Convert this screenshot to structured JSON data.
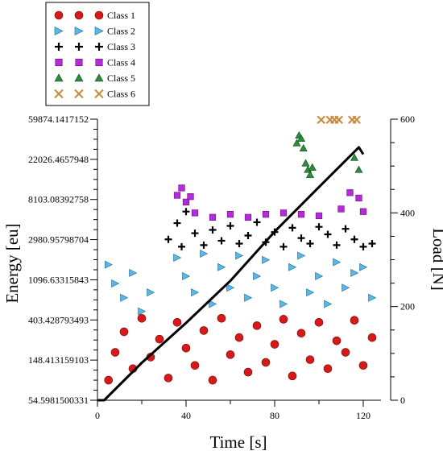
{
  "chart_data": {
    "type": "scatter",
    "xlabel": "Time [s]",
    "ylabel_left": "Energy [eu]",
    "ylabel_right": "Load [N]",
    "x_range": [
      0,
      128
    ],
    "x_ticks": [
      0,
      40,
      80,
      120
    ],
    "x_tick_labels": [
      "0",
      "40",
      "80",
      "120"
    ],
    "y_left_scale": "log",
    "y_left_range": [
      54.5981500331,
      59874.1417152
    ],
    "y_left_ticks": [
      54.5981500331,
      148.413159103,
      403.428793493,
      1096.63315843,
      2980.95798704,
      8103.08392758,
      22026.4657948,
      59874.1417152
    ],
    "y_left_tick_labels": [
      "54.5981500331",
      "148.413159103",
      "403.428793493",
      "1096.63315843",
      "2980.95798704",
      "8103.08392758",
      "22026.4657948",
      "59874.1417152"
    ],
    "y_right_range": [
      0,
      600
    ],
    "y_right_ticks": [
      0,
      200,
      400,
      600
    ],
    "y_right_tick_labels": [
      "0",
      "200",
      "400",
      "600"
    ],
    "legend_position": "top-left, outside",
    "series": [
      {
        "name": "Class 1",
        "marker": "circle",
        "color": "#d41a1a",
        "edge": "#7a0000",
        "points": [
          [
            5,
            90
          ],
          [
            8,
            180
          ],
          [
            12,
            300
          ],
          [
            16,
            120
          ],
          [
            20,
            420
          ],
          [
            24,
            160
          ],
          [
            28,
            250
          ],
          [
            32,
            95
          ],
          [
            36,
            380
          ],
          [
            40,
            200
          ],
          [
            44,
            130
          ],
          [
            48,
            310
          ],
          [
            52,
            90
          ],
          [
            56,
            420
          ],
          [
            60,
            170
          ],
          [
            64,
            260
          ],
          [
            68,
            110
          ],
          [
            72,
            350
          ],
          [
            76,
            140
          ],
          [
            80,
            220
          ],
          [
            84,
            410
          ],
          [
            88,
            100
          ],
          [
            92,
            290
          ],
          [
            96,
            150
          ],
          [
            100,
            380
          ],
          [
            104,
            120
          ],
          [
            108,
            240
          ],
          [
            112,
            180
          ],
          [
            116,
            400
          ],
          [
            120,
            130
          ],
          [
            124,
            260
          ]
        ]
      },
      {
        "name": "Class 2",
        "marker": "triangle-right",
        "color": "#5bb8e6",
        "edge": "#1f6a96",
        "points": [
          [
            5,
            1600
          ],
          [
            8,
            1000
          ],
          [
            12,
            700
          ],
          [
            16,
            1300
          ],
          [
            20,
            500
          ],
          [
            24,
            800
          ],
          [
            36,
            1900
          ],
          [
            40,
            1200
          ],
          [
            44,
            800
          ],
          [
            48,
            2100
          ],
          [
            52,
            600
          ],
          [
            56,
            1500
          ],
          [
            60,
            900
          ],
          [
            64,
            2000
          ],
          [
            68,
            700
          ],
          [
            72,
            1200
          ],
          [
            76,
            1800
          ],
          [
            80,
            900
          ],
          [
            84,
            600
          ],
          [
            88,
            1500
          ],
          [
            92,
            2000
          ],
          [
            96,
            800
          ],
          [
            100,
            1200
          ],
          [
            104,
            600
          ],
          [
            108,
            1700
          ],
          [
            112,
            900
          ],
          [
            116,
            1300
          ],
          [
            120,
            1500
          ],
          [
            124,
            700
          ]
        ]
      },
      {
        "name": "Class 3",
        "marker": "plus",
        "color": "#000000",
        "edge": "#000000",
        "points": [
          [
            32,
            3000
          ],
          [
            36,
            4500
          ],
          [
            38,
            2500
          ],
          [
            40,
            6000
          ],
          [
            44,
            3500
          ],
          [
            48,
            2600
          ],
          [
            52,
            3800
          ],
          [
            56,
            2900
          ],
          [
            60,
            4200
          ],
          [
            64,
            2700
          ],
          [
            68,
            3300
          ],
          [
            72,
            4600
          ],
          [
            76,
            2800
          ],
          [
            80,
            3600
          ],
          [
            84,
            2500
          ],
          [
            88,
            4000
          ],
          [
            92,
            3100
          ],
          [
            96,
            2700
          ],
          [
            100,
            4100
          ],
          [
            104,
            3400
          ],
          [
            108,
            2600
          ],
          [
            112,
            3900
          ],
          [
            116,
            3000
          ],
          [
            120,
            2500
          ],
          [
            124,
            2700
          ]
        ]
      },
      {
        "name": "Class 4",
        "marker": "square",
        "color": "#b42dd4",
        "edge": "#6a0a85",
        "points": [
          [
            36,
            9000
          ],
          [
            38,
            10800
          ],
          [
            40,
            7600
          ],
          [
            42,
            8700
          ],
          [
            44,
            5800
          ],
          [
            52,
            5200
          ],
          [
            60,
            5600
          ],
          [
            68,
            5200
          ],
          [
            76,
            5600
          ],
          [
            84,
            5800
          ],
          [
            92,
            5600
          ],
          [
            100,
            5400
          ],
          [
            110,
            6400
          ],
          [
            114,
            9600
          ],
          [
            118,
            8400
          ],
          [
            120,
            6000
          ]
        ]
      },
      {
        "name": "Class 5",
        "marker": "triangle",
        "color": "#2e8b3e",
        "edge": "#0f4a1c",
        "points": [
          [
            90,
            33000
          ],
          [
            91,
            40000
          ],
          [
            92,
            37000
          ],
          [
            93,
            29000
          ],
          [
            94,
            20000
          ],
          [
            95,
            17000
          ],
          [
            96,
            15000
          ],
          [
            97,
            18000
          ],
          [
            116,
            23000
          ],
          [
            118,
            17000
          ]
        ]
      },
      {
        "name": "Class 6",
        "marker": "x",
        "color": "#c9893a",
        "edge": "#8a5519",
        "points": [
          [
            101,
            59000
          ],
          [
            105,
            59000
          ],
          [
            107,
            59000
          ],
          [
            109,
            59000
          ],
          [
            115,
            59000
          ],
          [
            117,
            59000
          ]
        ]
      }
    ],
    "load_curve": {
      "color": "#000000",
      "axis": "right",
      "points": [
        [
          0,
          0
        ],
        [
          3,
          0
        ],
        [
          20,
          80
        ],
        [
          40,
          165
        ],
        [
          60,
          255
        ],
        [
          80,
          360
        ],
        [
          100,
          455
        ],
        [
          118,
          540
        ],
        [
          120,
          525
        ]
      ]
    }
  }
}
